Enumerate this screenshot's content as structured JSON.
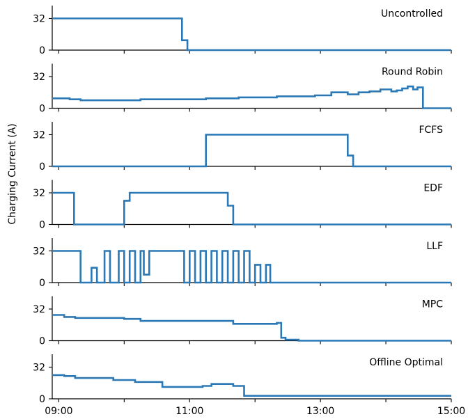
{
  "chart_data": {
    "type": "line",
    "ylabel": "Charging Current (A)",
    "x_ticks": [
      "09:00",
      "11:00",
      "13:00",
      "15:00"
    ],
    "x_range": [
      "08:54",
      "15:00"
    ],
    "y_ticks": [
      0,
      32
    ],
    "ylim": [
      0,
      45
    ],
    "color": "#2a78b5",
    "grid": false,
    "panels": [
      {
        "title": "Uncontrolled",
        "series": [
          {
            "t": "08:54",
            "v": 32
          },
          {
            "t": "10:53",
            "v": 10
          },
          {
            "t": "10:58",
            "v": 0
          },
          {
            "t": "15:00",
            "v": 0
          }
        ]
      },
      {
        "title": "Round Robin",
        "series": [
          {
            "t": "08:54",
            "v": 10
          },
          {
            "t": "09:10",
            "v": 9
          },
          {
            "t": "09:20",
            "v": 8
          },
          {
            "t": "10:15",
            "v": 9
          },
          {
            "t": "11:15",
            "v": 10
          },
          {
            "t": "11:45",
            "v": 11
          },
          {
            "t": "12:20",
            "v": 12
          },
          {
            "t": "12:55",
            "v": 13
          },
          {
            "t": "13:10",
            "v": 16
          },
          {
            "t": "13:25",
            "v": 14
          },
          {
            "t": "13:35",
            "v": 16
          },
          {
            "t": "13:45",
            "v": 17
          },
          {
            "t": "13:55",
            "v": 19
          },
          {
            "t": "14:05",
            "v": 17
          },
          {
            "t": "14:10",
            "v": 18
          },
          {
            "t": "14:15",
            "v": 20
          },
          {
            "t": "14:20",
            "v": 22
          },
          {
            "t": "14:25",
            "v": 19
          },
          {
            "t": "14:29",
            "v": 21
          },
          {
            "t": "14:34",
            "v": 0
          },
          {
            "t": "15:00",
            "v": 0
          }
        ]
      },
      {
        "title": "FCFS",
        "series": [
          {
            "t": "08:54",
            "v": 0
          },
          {
            "t": "11:15",
            "v": 32
          },
          {
            "t": "13:25",
            "v": 11
          },
          {
            "t": "13:30",
            "v": 0
          },
          {
            "t": "15:00",
            "v": 0
          }
        ]
      },
      {
        "title": "EDF",
        "series": [
          {
            "t": "08:54",
            "v": 32
          },
          {
            "t": "09:14",
            "v": 0
          },
          {
            "t": "10:00",
            "v": 24
          },
          {
            "t": "10:05",
            "v": 32
          },
          {
            "t": "11:35",
            "v": 19
          },
          {
            "t": "11:40",
            "v": 0
          },
          {
            "t": "15:00",
            "v": 0
          }
        ]
      },
      {
        "title": "LLF",
        "series": [
          {
            "t": "08:54",
            "v": 32
          },
          {
            "t": "09:20",
            "v": 0
          },
          {
            "t": "09:30",
            "v": 15
          },
          {
            "t": "09:35",
            "v": 0
          },
          {
            "t": "09:42",
            "v": 32
          },
          {
            "t": "09:47",
            "v": 0
          },
          {
            "t": "09:55",
            "v": 32
          },
          {
            "t": "10:00",
            "v": 0
          },
          {
            "t": "10:05",
            "v": 32
          },
          {
            "t": "10:10",
            "v": 0
          },
          {
            "t": "10:15",
            "v": 32
          },
          {
            "t": "10:18",
            "v": 8
          },
          {
            "t": "10:23",
            "v": 32
          },
          {
            "t": "10:55",
            "v": 0
          },
          {
            "t": "11:00",
            "v": 32
          },
          {
            "t": "11:05",
            "v": 0
          },
          {
            "t": "11:10",
            "v": 32
          },
          {
            "t": "11:15",
            "v": 0
          },
          {
            "t": "11:20",
            "v": 32
          },
          {
            "t": "11:25",
            "v": 0
          },
          {
            "t": "11:30",
            "v": 32
          },
          {
            "t": "11:35",
            "v": 0
          },
          {
            "t": "11:40",
            "v": 32
          },
          {
            "t": "11:45",
            "v": 0
          },
          {
            "t": "11:50",
            "v": 32
          },
          {
            "t": "11:55",
            "v": 0
          },
          {
            "t": "12:00",
            "v": 18
          },
          {
            "t": "12:05",
            "v": 0
          },
          {
            "t": "12:10",
            "v": 18
          },
          {
            "t": "12:14",
            "v": 0
          },
          {
            "t": "15:00",
            "v": 0
          }
        ]
      },
      {
        "title": "MPC",
        "series": [
          {
            "t": "08:54",
            "v": 26
          },
          {
            "t": "09:05",
            "v": 24
          },
          {
            "t": "09:15",
            "v": 23
          },
          {
            "t": "10:00",
            "v": 22
          },
          {
            "t": "10:15",
            "v": 20
          },
          {
            "t": "11:40",
            "v": 17
          },
          {
            "t": "12:20",
            "v": 18
          },
          {
            "t": "12:24",
            "v": 3
          },
          {
            "t": "12:28",
            "v": 1
          },
          {
            "t": "12:40",
            "v": 0
          },
          {
            "t": "15:00",
            "v": 0
          }
        ]
      },
      {
        "title": "Offline Optimal",
        "series": [
          {
            "t": "08:54",
            "v": 24
          },
          {
            "t": "09:05",
            "v": 23
          },
          {
            "t": "09:15",
            "v": 21
          },
          {
            "t": "09:50",
            "v": 19
          },
          {
            "t": "10:10",
            "v": 17
          },
          {
            "t": "10:35",
            "v": 12
          },
          {
            "t": "11:12",
            "v": 13
          },
          {
            "t": "11:20",
            "v": 15
          },
          {
            "t": "11:40",
            "v": 13
          },
          {
            "t": "11:50",
            "v": 3
          },
          {
            "t": "15:00",
            "v": 3
          }
        ]
      }
    ]
  }
}
